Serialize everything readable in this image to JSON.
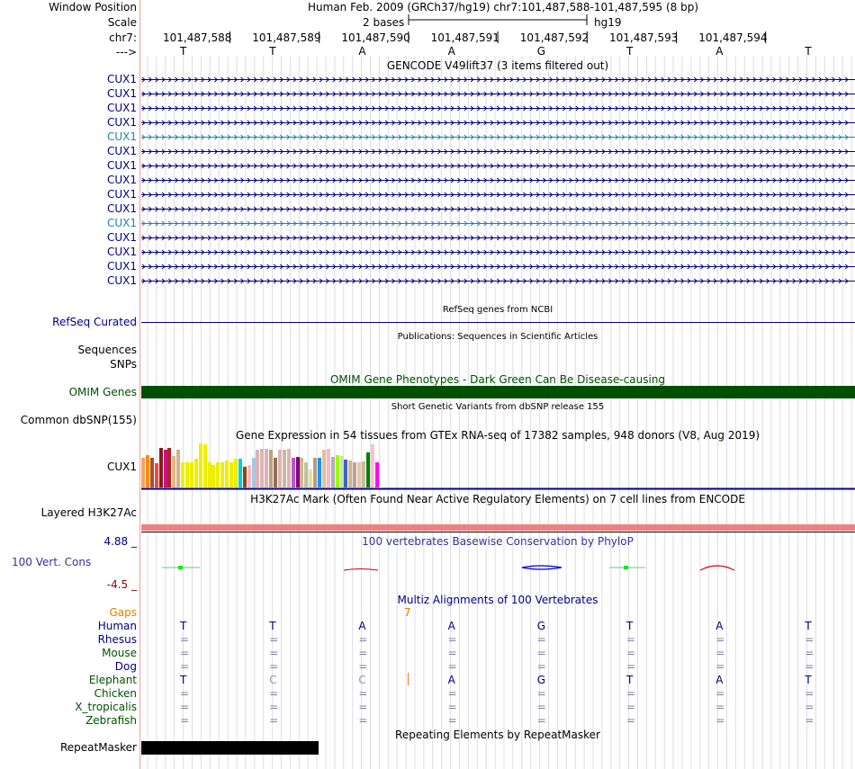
{
  "header": {
    "window_position_label": "Window Position",
    "window_position_text": "Human Feb. 2009 (GRCh37/hg19)   chr7:101,487,588-101,487,595 (8 bp)",
    "scale_label": "Scale",
    "scale_bases": "2 bases",
    "scale_assembly": "hg19",
    "chrom_label": "chr7:",
    "coords": [
      "101,487,588",
      "101,487,589",
      "101,487,590",
      "101,487,591",
      "101,487,592",
      "101,487,593",
      "101,487,594"
    ],
    "strand_label": "--->",
    "bases": [
      "T",
      "T",
      "A",
      "A",
      "G",
      "T",
      "A",
      "T"
    ]
  },
  "gencode": {
    "title": "GENCODE V49lift37 (3 items filtered out)",
    "items": [
      {
        "label": "CUX1",
        "color": "#000080"
      },
      {
        "label": "CUX1",
        "color": "#000080"
      },
      {
        "label": "CUX1",
        "color": "#000080"
      },
      {
        "label": "CUX1",
        "color": "#000080"
      },
      {
        "label": "CUX1",
        "color": "#1e87a6"
      },
      {
        "label": "CUX1",
        "color": "#000080"
      },
      {
        "label": "CUX1",
        "color": "#000080"
      },
      {
        "label": "CUX1",
        "color": "#000080"
      },
      {
        "label": "CUX1",
        "color": "#000080"
      },
      {
        "label": "CUX1",
        "color": "#000080"
      },
      {
        "label": "CUX1",
        "color": "#1e87a6"
      },
      {
        "label": "CUX1",
        "color": "#000080"
      },
      {
        "label": "CUX1",
        "color": "#000080"
      },
      {
        "label": "CUX1",
        "color": "#000080"
      },
      {
        "label": "CUX1",
        "color": "#000080"
      }
    ]
  },
  "refseq": {
    "label": "RefSeq Curated",
    "title": "RefSeq genes from NCBI"
  },
  "publications": {
    "title": "Publications: Sequences in Scientific Articles",
    "label_line1": "Sequences",
    "label_line2": "SNPs"
  },
  "omim": {
    "title": "OMIM Gene Phenotypes - Dark Green Can Be Disease-causing",
    "label": "OMIM Genes",
    "color": "#005000"
  },
  "dbsnp": {
    "title": "Short Genetic Variants from dbSNP release 155",
    "label": "Common dbSNP(155)"
  },
  "gtex": {
    "title": "Gene Expression in 54 tissues from GTEx RNA-seq of 17382 samples, 948 donors (V8, Aug 2019)",
    "label": "CUX1",
    "bars": [
      {
        "c": "#f4a460",
        "v": 0.65
      },
      {
        "c": "#ff8c00",
        "v": 0.72
      },
      {
        "c": "#a0522d",
        "v": 0.65
      },
      {
        "c": "#ff4040",
        "v": 0.53
      },
      {
        "c": "#8b1a1a",
        "v": 0.88
      },
      {
        "c": "#c71585",
        "v": 0.84
      },
      {
        "c": "#b22222",
        "v": 0.88
      },
      {
        "c": "#deb887",
        "v": 0.7
      },
      {
        "c": "#d2b48c",
        "v": 0.84
      },
      {
        "c": "#eeee00",
        "v": 0.55
      },
      {
        "c": "#eeee00",
        "v": 0.57
      },
      {
        "c": "#eeee00",
        "v": 0.57
      },
      {
        "c": "#eeee00",
        "v": 0.63
      },
      {
        "c": "#eeee00",
        "v": 0.98
      },
      {
        "c": "#eeee00",
        "v": 0.96
      },
      {
        "c": "#eeee00",
        "v": 0.57
      },
      {
        "c": "#eeee00",
        "v": 0.5
      },
      {
        "c": "#eeee00",
        "v": 0.55
      },
      {
        "c": "#eeee00",
        "v": 0.55
      },
      {
        "c": "#eeee00",
        "v": 0.59
      },
      {
        "c": "#eeee00",
        "v": 0.57
      },
      {
        "c": "#eeee00",
        "v": 0.63
      },
      {
        "c": "#00ced1",
        "v": 0.63
      },
      {
        "c": "#8b4513",
        "v": 0.45
      },
      {
        "c": "#ffb6c1",
        "v": 0.5
      },
      {
        "c": "#a6c8e0",
        "v": 0.66
      },
      {
        "c": "#dcb4b4",
        "v": 0.84
      },
      {
        "c": "#dcb4b4",
        "v": 0.86
      },
      {
        "c": "#dcb4b4",
        "v": 0.86
      },
      {
        "c": "#c0a080",
        "v": 0.84
      },
      {
        "c": "#8b7355",
        "v": 0.66
      },
      {
        "c": "#dcb4b4",
        "v": 0.83
      },
      {
        "c": "#cdb79e",
        "v": 0.84
      },
      {
        "c": "#dcb4b4",
        "v": 0.86
      },
      {
        "c": "#b459c8",
        "v": 0.65
      },
      {
        "c": "#800080",
        "v": 0.68
      },
      {
        "c": "#d2b48c",
        "v": 0.66
      },
      {
        "c": "#c0c0a0",
        "v": 0.55
      },
      {
        "c": "#eedd99",
        "v": 0.4
      },
      {
        "c": "#b0a080",
        "v": 0.66
      },
      {
        "c": "#1e90ff",
        "v": 0.66
      },
      {
        "c": "#e0c0a0",
        "v": 0.84
      },
      {
        "c": "#ffb6c1",
        "v": 0.85
      },
      {
        "c": "#b0b0b0",
        "v": 0.68
      },
      {
        "c": "#99ff00",
        "v": 0.71
      },
      {
        "c": "#c8e6a0",
        "v": 0.7
      },
      {
        "c": "#3c64c8",
        "v": 0.62
      },
      {
        "c": "#d2b48c",
        "v": 0.6
      },
      {
        "c": "#c0a090",
        "v": 0.56
      },
      {
        "c": "#e0c8b0",
        "v": 0.56
      },
      {
        "c": "#cdb79e",
        "v": 0.58
      },
      {
        "c": "#008000",
        "v": 0.78
      },
      {
        "c": "#ffc0cb",
        "v": 0.95
      },
      {
        "c": "#ff00ff",
        "v": 0.55
      }
    ]
  },
  "h3k27ac": {
    "title": "H3K27Ac Mark (Often Found Near Active Regulatory Elements) on 7 cell lines from ENCODE",
    "label": "Layered H3K27Ac",
    "color": "#ef8080"
  },
  "phylop": {
    "title": "100 vertebrates Basewise Conservation by PhyloP",
    "label": "100 Vert. Cons",
    "max": "4.88 _",
    "min": "-4.5 _"
  },
  "multiz": {
    "title": "Multiz Alignments of 100 Vertebrates",
    "gaps_label": "Gaps",
    "gap_value": "7",
    "species": [
      {
        "name": "Human",
        "color": "#000080",
        "bases": [
          "T",
          "T",
          "A",
          "A",
          "G",
          "T",
          "A",
          "T"
        ]
      },
      {
        "name": "Rhesus",
        "color": "#000080",
        "bases": [
          "=",
          "=",
          "=",
          "=",
          "=",
          "=",
          "=",
          "="
        ]
      },
      {
        "name": "Mouse",
        "color": "#005000",
        "bases": [
          "=",
          "=",
          "=",
          "=",
          "=",
          "=",
          "=",
          "="
        ]
      },
      {
        "name": "Dog",
        "color": "#000080",
        "bases": [
          "=",
          "=",
          "=",
          "=",
          "=",
          "=",
          "=",
          "="
        ]
      },
      {
        "name": "Elephant",
        "color": "#005000",
        "bases": [
          "T",
          "C",
          "C",
          "A",
          "G",
          "T",
          "A",
          "T"
        ]
      },
      {
        "name": "Chicken",
        "color": "#005000",
        "bases": [
          "=",
          "=",
          "=",
          "=",
          "=",
          "=",
          "=",
          "="
        ]
      },
      {
        "name": "X_tropicalis",
        "color": "#005000",
        "bases": [
          "=",
          "=",
          "=",
          "=",
          "=",
          "=",
          "=",
          "="
        ]
      },
      {
        "name": "Zebrafish",
        "color": "#005000",
        "bases": [
          "=",
          "=",
          "=",
          "=",
          "=",
          "=",
          "=",
          "="
        ]
      }
    ]
  },
  "repeatmasker": {
    "title": "Repeating Elements by RepeatMasker",
    "label": "RepeatMasker"
  }
}
